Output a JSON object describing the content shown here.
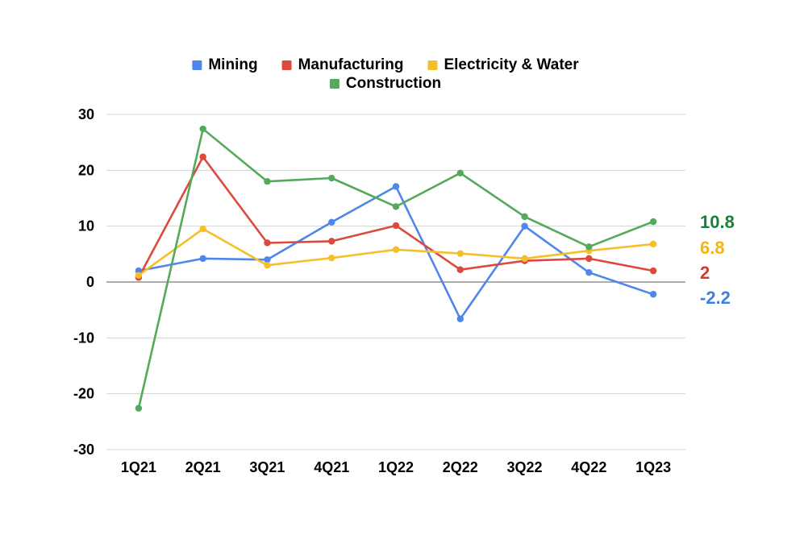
{
  "chart_data": {
    "type": "line",
    "title": "",
    "xlabel": "",
    "ylabel": "",
    "categories": [
      "1Q21",
      "2Q21",
      "3Q21",
      "4Q21",
      "1Q22",
      "2Q22",
      "3Q22",
      "4Q22",
      "1Q23"
    ],
    "ylim": [
      -30,
      30
    ],
    "yticks": [
      30,
      20,
      10,
      0,
      -10,
      -20,
      -30
    ],
    "grid": true,
    "legend_position": "top-center",
    "series": [
      {
        "name": "Mining",
        "color": "#4f86ec",
        "values": [
          2.0,
          4.2,
          4.0,
          10.7,
          17.1,
          -6.6,
          10.0,
          1.7,
          -2.2
        ],
        "end_label": "-2.2"
      },
      {
        "name": "Manufacturing",
        "color": "#db4a3c",
        "values": [
          0.8,
          22.4,
          7.0,
          7.3,
          10.1,
          2.2,
          3.8,
          4.2,
          2.0
        ],
        "end_label": "2"
      },
      {
        "name": "Electricity & Water",
        "color": "#f5bf2a",
        "values": [
          1.2,
          9.5,
          3.0,
          4.3,
          5.8,
          5.1,
          4.2,
          5.6,
          6.8
        ],
        "end_label": "6.8"
      },
      {
        "name": "Construction",
        "color": "#55a95a",
        "values": [
          -22.6,
          27.4,
          18.0,
          18.6,
          13.5,
          19.5,
          11.7,
          6.3,
          10.8
        ],
        "end_label": "10.8"
      }
    ],
    "end_label_colors": [
      "#3f7fe0",
      "#d33b2c",
      "#f3b60f",
      "#1b7f3a"
    ]
  }
}
